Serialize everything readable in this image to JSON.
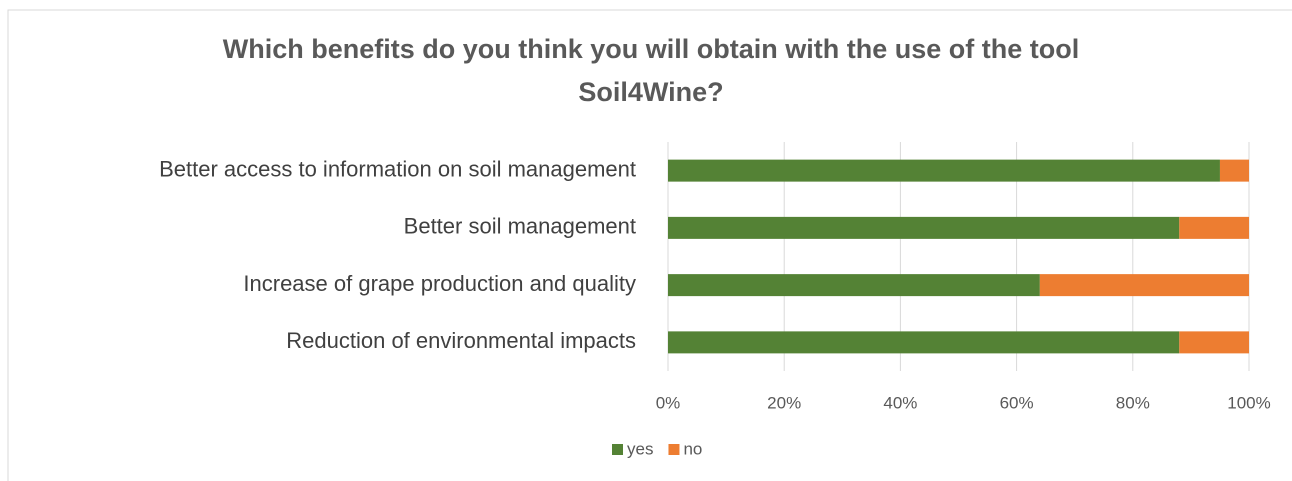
{
  "chart_data": {
    "type": "stacked-barh",
    "title": "Which benefits do you think you will obtain with the use of the tool Soil4Wine?",
    "categories": [
      "Better access to information on soil management",
      "Better soil management",
      "Increase of grape production and quality",
      "Reduction of environmental impacts"
    ],
    "series": [
      {
        "name": "yes",
        "color": "#548235",
        "values": [
          95,
          88,
          64,
          88
        ]
      },
      {
        "name": "no",
        "color": "#ed7d31",
        "values": [
          5,
          12,
          36,
          12
        ]
      }
    ],
    "xlim": [
      0,
      100
    ],
    "xticks": [
      {
        "value": 0,
        "label": "0%"
      },
      {
        "value": 20,
        "label": "20%"
      },
      {
        "value": 40,
        "label": "40%"
      },
      {
        "value": 60,
        "label": "60%"
      },
      {
        "value": 80,
        "label": "80%"
      },
      {
        "value": 100,
        "label": "100%"
      }
    ],
    "grid": true,
    "legend": "bottom"
  }
}
